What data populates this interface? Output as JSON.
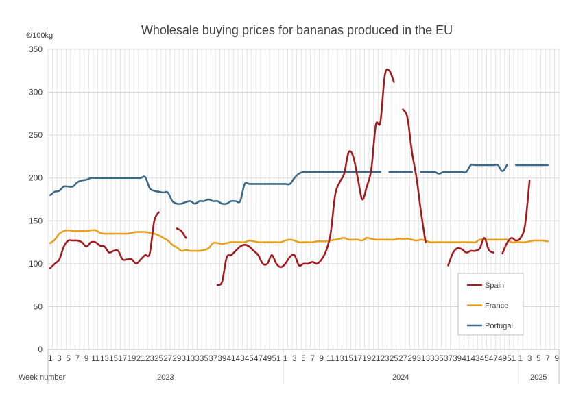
{
  "chart_data": {
    "type": "line",
    "title": "Wholesale buying prices for bananas produced in the EU",
    "ylabel": "€/100kg",
    "xlabel": "Week number",
    "ylim": [
      0,
      350
    ],
    "yticks": [
      0,
      50,
      100,
      150,
      200,
      250,
      300,
      350
    ],
    "grid": true,
    "legend_position": "bottom-right",
    "years": [
      {
        "label": "2023",
        "start_week": 1,
        "weeks": 52
      },
      {
        "label": "2024",
        "start_week": 1,
        "weeks": 52
      },
      {
        "label": "2025",
        "start_week": 1,
        "weeks": 9
      }
    ],
    "week_tick_labels": [
      [
        "1",
        "3",
        "5",
        "7",
        "9",
        "11",
        "13",
        "15",
        "17",
        "19",
        "21",
        "23",
        "25",
        "27",
        "29",
        "31",
        "33",
        "35",
        "37",
        "39",
        "41",
        "43",
        "45",
        "47",
        "49",
        "51"
      ],
      [
        "1",
        "3",
        "5",
        "7",
        "9",
        "11",
        "13",
        "15",
        "17",
        "19",
        "21",
        "23",
        "25",
        "27",
        "29",
        "31",
        "33",
        "35",
        "37",
        "39",
        "41",
        "43",
        "45",
        "47",
        "49",
        "51"
      ],
      [
        "1",
        "3",
        "5",
        "7",
        "9"
      ]
    ],
    "series": [
      {
        "name": "Spain",
        "color": "#a31a1f",
        "values": [
          95,
          100,
          105,
          120,
          127,
          127,
          127,
          125,
          120,
          125,
          125,
          121,
          120,
          113,
          115,
          115,
          105,
          105,
          105,
          100,
          105,
          110,
          112,
          150,
          160,
          null,
          null,
          null,
          141,
          138,
          130,
          null,
          null,
          null,
          null,
          null,
          null,
          75,
          79,
          107,
          110,
          115,
          120,
          122,
          120,
          115,
          110,
          100,
          100,
          110,
          100,
          96,
          100,
          108,
          110,
          98,
          100,
          100,
          102,
          100,
          105,
          115,
          135,
          180,
          195,
          205,
          230,
          225,
          200,
          175,
          190,
          210,
          262,
          265,
          320,
          325,
          312,
          null,
          280,
          270,
          230,
          200,
          160,
          125,
          null,
          null,
          null,
          null,
          98,
          112,
          118,
          117,
          113,
          115,
          115,
          118,
          130,
          116,
          113,
          null,
          112,
          124,
          130,
          127,
          130,
          145,
          197
        ]
      },
      {
        "name": "France",
        "color": "#e8a020",
        "values": [
          124,
          128,
          135,
          138,
          139,
          138,
          138,
          138,
          138,
          139,
          139,
          136,
          135,
          135,
          135,
          135,
          135,
          135,
          136,
          137,
          137,
          137,
          136,
          135,
          133,
          130,
          127,
          122,
          119,
          115,
          116,
          115,
          115,
          115,
          116,
          118,
          124,
          124,
          123,
          124,
          125,
          125,
          125,
          125,
          127,
          126,
          125,
          125,
          125,
          125,
          125,
          125,
          127,
          128,
          127,
          125,
          125,
          125,
          125,
          126,
          126,
          126,
          127,
          128,
          129,
          130,
          128,
          128,
          128,
          127,
          130,
          129,
          128,
          128,
          128,
          128,
          128,
          129,
          129,
          129,
          128,
          127,
          128,
          127,
          125,
          125,
          125,
          125,
          125,
          125,
          125,
          125,
          125,
          125,
          125,
          128,
          128,
          128,
          128,
          128,
          128,
          128,
          125,
          125,
          125,
          125,
          126,
          127,
          127,
          127,
          126
        ]
      },
      {
        "name": "Portugal",
        "color": "#3a6a87",
        "values": [
          180,
          184,
          185,
          190,
          190,
          190,
          195,
          197,
          198,
          200,
          200,
          200,
          200,
          200,
          200,
          200,
          200,
          200,
          200,
          200,
          200,
          201,
          188,
          185,
          184,
          183,
          183,
          173,
          170,
          170,
          172,
          173,
          170,
          173,
          173,
          175,
          173,
          173,
          170,
          170,
          173,
          173,
          173,
          193,
          193,
          193,
          193,
          193,
          193,
          193,
          193,
          193,
          193,
          193,
          200,
          205,
          207,
          207,
          207,
          207,
          207,
          207,
          207,
          207,
          207,
          207,
          207,
          207,
          207,
          207,
          207,
          207,
          207,
          207,
          null,
          207,
          207,
          207,
          207,
          207,
          207,
          null,
          207,
          207,
          207,
          207,
          205,
          207,
          207,
          207,
          207,
          207,
          207,
          215,
          215,
          215,
          215,
          215,
          215,
          215,
          208,
          215,
          null,
          215,
          215,
          215,
          215,
          215,
          215,
          215,
          215
        ]
      }
    ]
  }
}
